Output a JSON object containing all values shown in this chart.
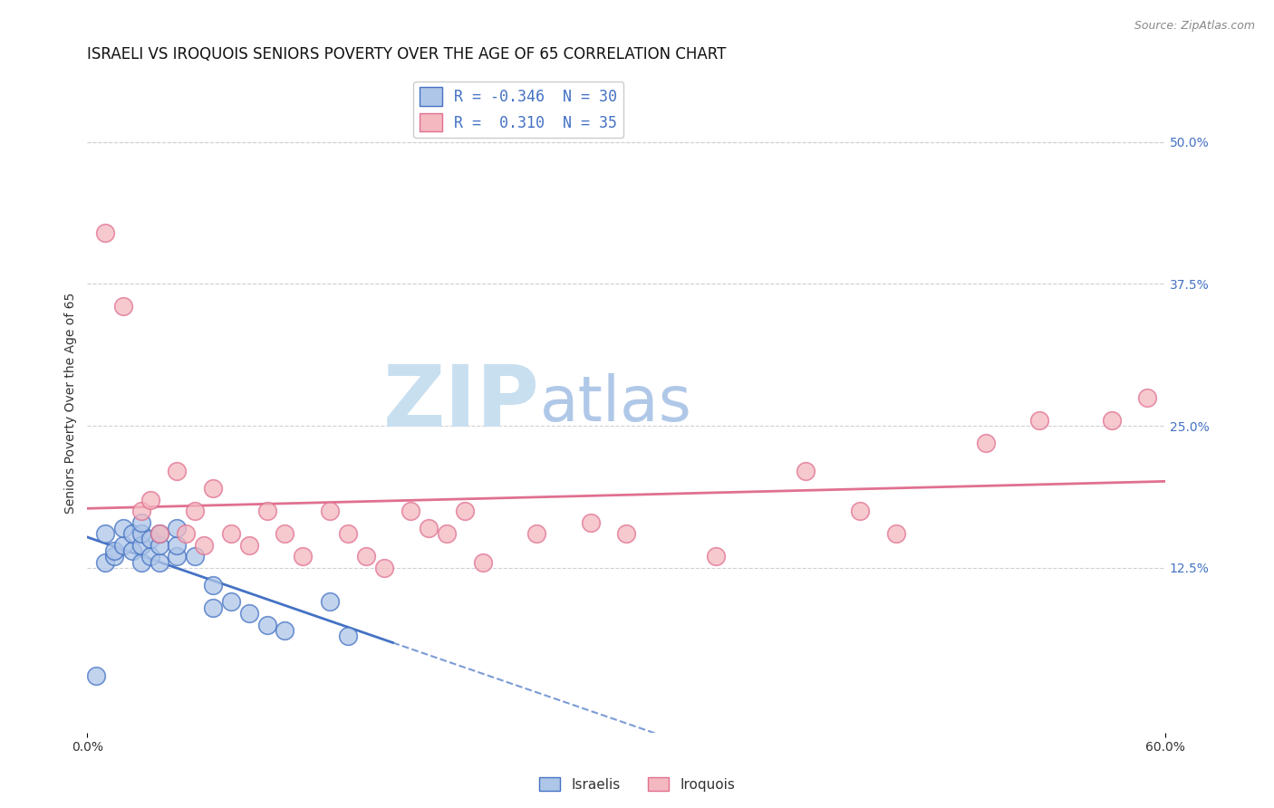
{
  "title": "ISRAELI VS IROQUOIS SENIORS POVERTY OVER THE AGE OF 65 CORRELATION CHART",
  "source_text": "Source: ZipAtlas.com",
  "ylabel": "Seniors Poverty Over the Age of 65",
  "xlabel": "",
  "xlim": [
    0.0,
    0.6
  ],
  "ylim": [
    -0.02,
    0.56
  ],
  "plot_ylim": [
    -0.02,
    0.56
  ],
  "xticks": [
    0.0,
    0.6
  ],
  "xticklabels": [
    "0.0%",
    "60.0%"
  ],
  "yticks_right": [
    0.125,
    0.25,
    0.375,
    0.5
  ],
  "yticklabels_right": [
    "12.5%",
    "25.0%",
    "37.5%",
    "50.0%"
  ],
  "legend_entries": [
    {
      "label": "R = -0.346  N = 30",
      "color": "#aec6e8"
    },
    {
      "label": "R =  0.310  N = 35",
      "color": "#f4a8b0"
    }
  ],
  "israelis_x": [
    0.005,
    0.01,
    0.01,
    0.015,
    0.015,
    0.02,
    0.02,
    0.025,
    0.025,
    0.03,
    0.03,
    0.03,
    0.03,
    0.035,
    0.035,
    0.04,
    0.04,
    0.04,
    0.05,
    0.05,
    0.05,
    0.06,
    0.07,
    0.07,
    0.08,
    0.09,
    0.1,
    0.11,
    0.135,
    0.145
  ],
  "israelis_y": [
    0.03,
    0.13,
    0.155,
    0.135,
    0.14,
    0.145,
    0.16,
    0.14,
    0.155,
    0.13,
    0.145,
    0.155,
    0.165,
    0.135,
    0.15,
    0.13,
    0.145,
    0.155,
    0.135,
    0.145,
    0.16,
    0.135,
    0.09,
    0.11,
    0.095,
    0.085,
    0.075,
    0.07,
    0.095,
    0.065
  ],
  "iroquois_x": [
    0.01,
    0.02,
    0.03,
    0.035,
    0.04,
    0.05,
    0.055,
    0.06,
    0.065,
    0.07,
    0.08,
    0.09,
    0.1,
    0.11,
    0.12,
    0.135,
    0.145,
    0.155,
    0.165,
    0.18,
    0.19,
    0.2,
    0.21,
    0.22,
    0.25,
    0.28,
    0.3,
    0.35,
    0.4,
    0.43,
    0.45,
    0.5,
    0.53,
    0.57,
    0.59
  ],
  "iroquois_y": [
    0.42,
    0.355,
    0.175,
    0.185,
    0.155,
    0.21,
    0.155,
    0.175,
    0.145,
    0.195,
    0.155,
    0.145,
    0.175,
    0.155,
    0.135,
    0.175,
    0.155,
    0.135,
    0.125,
    0.175,
    0.16,
    0.155,
    0.175,
    0.13,
    0.155,
    0.165,
    0.155,
    0.135,
    0.21,
    0.175,
    0.155,
    0.235,
    0.255,
    0.255,
    0.275
  ],
  "blue_color": "#4472c4",
  "pink_color": "#e07090",
  "blue_fill": "#aec6e8",
  "pink_fill": "#f4b8c0",
  "watermark_zip": "ZIP",
  "watermark_atlas": "atlas",
  "watermark_color_zip": "#c8dff0",
  "watermark_color_atlas": "#b0c8e8",
  "background_color": "#ffffff",
  "grid_color": "#d0d0d8",
  "title_fontsize": 12,
  "axis_label_fontsize": 10,
  "tick_fontsize": 10,
  "legend_fontsize": 12
}
